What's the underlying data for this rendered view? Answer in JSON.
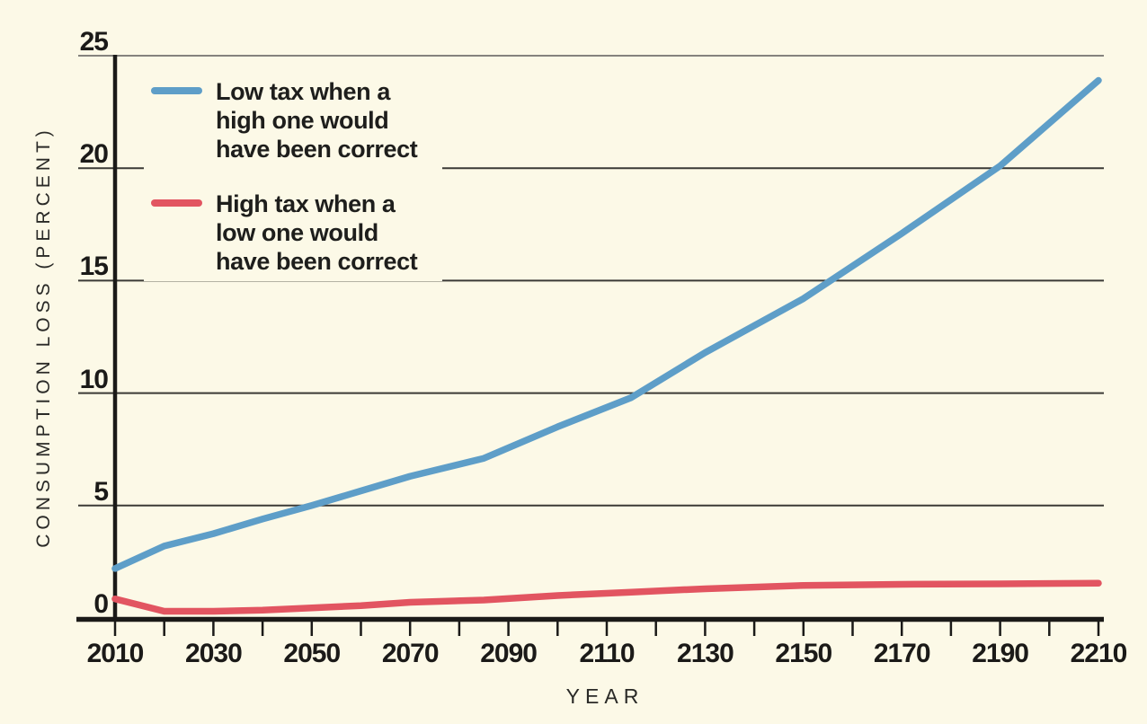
{
  "chart_data": {
    "type": "line",
    "xlabel": "YEAR",
    "ylabel": "CONSUMPTION LOSS (PERCENT)",
    "xlim": [
      2010,
      2210
    ],
    "ylim": [
      0,
      25
    ],
    "x_ticks_labeled": [
      2010,
      2030,
      2050,
      2070,
      2090,
      2110,
      2130,
      2150,
      2170,
      2190,
      2210
    ],
    "x_tick_minor_step": 10,
    "y_ticks": [
      0,
      5,
      10,
      15,
      20,
      25
    ],
    "grid": "horizontal",
    "legend_position": "top-left-inside",
    "series": [
      {
        "name": "Low tax when a high one would have been correct",
        "color": "#5E9EC8",
        "x": [
          2010,
          2020,
          2030,
          2040,
          2050,
          2060,
          2070,
          2085,
          2100,
          2115,
          2130,
          2150,
          2170,
          2190,
          2210
        ],
        "values": [
          2.2,
          3.2,
          3.75,
          4.4,
          5.0,
          5.65,
          6.3,
          7.1,
          8.5,
          9.8,
          11.8,
          14.2,
          17.1,
          20.1,
          23.9
        ]
      },
      {
        "name": "High tax when a low one would have been correct",
        "color": "#E25561",
        "x": [
          2010,
          2020,
          2030,
          2040,
          2050,
          2060,
          2070,
          2085,
          2100,
          2115,
          2130,
          2150,
          2170,
          2190,
          2210
        ],
        "values": [
          0.85,
          0.3,
          0.3,
          0.35,
          0.45,
          0.55,
          0.7,
          0.8,
          1.0,
          1.15,
          1.3,
          1.45,
          1.5,
          1.52,
          1.55
        ]
      }
    ]
  },
  "legend": {
    "entries": [
      {
        "color": "#5E9EC8",
        "label_lines": [
          "Low tax when a",
          "high one would",
          "have been correct"
        ]
      },
      {
        "color": "#E25561",
        "label_lines": [
          "High tax when a",
          "low one would",
          "have been correct"
        ]
      }
    ]
  },
  "axes": {
    "x_label": "YEAR",
    "y_label": "CONSUMPTION LOSS (PERCENT)"
  },
  "colors": {
    "background": "#FCF9E7",
    "series_blue": "#5E9EC8",
    "series_red": "#E25561",
    "gridline": "#3B3A36",
    "gridline_top": "#85837E",
    "axis": "#1B1A18",
    "text": "#1D1D1B"
  }
}
